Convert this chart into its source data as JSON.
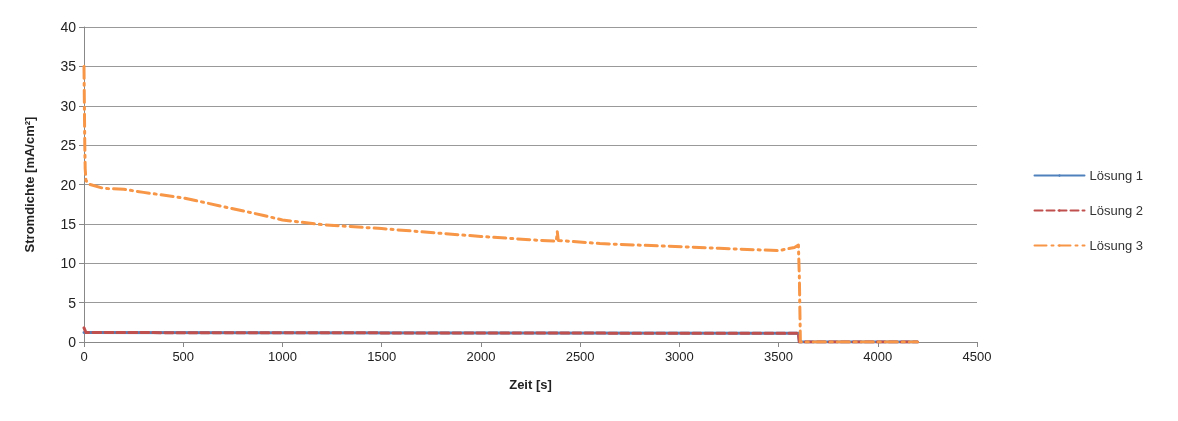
{
  "chart_data": {
    "type": "line",
    "xlabel": "Zeit [s]",
    "ylabel": "Stromdichte [mA/cm²]",
    "xlim": [
      0,
      4500
    ],
    "xticks": [
      0,
      500,
      1000,
      1500,
      2000,
      2500,
      3000,
      3500,
      4000,
      4500
    ],
    "ylim": [
      0,
      40
    ],
    "yticks": [
      0,
      5,
      10,
      15,
      20,
      25,
      30,
      35,
      40
    ],
    "grid": "y",
    "legend": "right",
    "marker": "none",
    "series": [
      {
        "name": "Lösung 1",
        "color": "#4f81bd",
        "line_style": "solid",
        "x": [
          0,
          3600,
          3605,
          4200
        ],
        "values": [
          1.2,
          1.1,
          0,
          0
        ]
      },
      {
        "name": "Lösung 2",
        "color": "#c0504d",
        "line_style": "dashed",
        "x": [
          0,
          10,
          3600,
          3605,
          4200
        ],
        "values": [
          1.8,
          1.2,
          1.1,
          0,
          0
        ]
      },
      {
        "name": "Lösung 3",
        "color": "#f79646",
        "line_style": "dotted",
        "x": [
          0,
          2,
          4,
          6,
          10,
          30,
          100,
          200,
          300,
          500,
          700,
          900,
          1000,
          1200,
          1500,
          1800,
          2000,
          2300,
          2380,
          2385,
          2390,
          2600,
          2900,
          3200,
          3500,
          3580,
          3600,
          3605,
          3610,
          4200
        ],
        "values": [
          35,
          30,
          25,
          22,
          20.5,
          20,
          19.5,
          19.4,
          19,
          18.3,
          17.2,
          16.1,
          15.5,
          14.9,
          14.4,
          13.8,
          13.4,
          12.9,
          12.8,
          14,
          12.9,
          12.5,
          12.2,
          11.9,
          11.6,
          12,
          12.3,
          8,
          0,
          0
        ]
      }
    ]
  }
}
